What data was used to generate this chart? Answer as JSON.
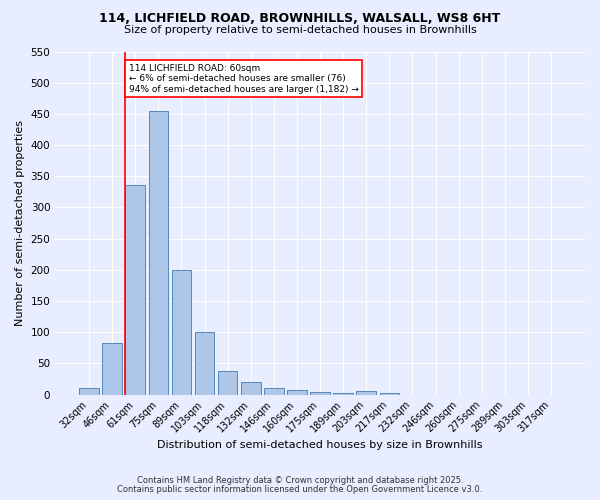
{
  "title1": "114, LICHFIELD ROAD, BROWNHILLS, WALSALL, WS8 6HT",
  "title2": "Size of property relative to semi-detached houses in Brownhills",
  "xlabel": "Distribution of semi-detached houses by size in Brownhills",
  "ylabel": "Number of semi-detached properties",
  "categories": [
    "32sqm",
    "46sqm",
    "61sqm",
    "75sqm",
    "89sqm",
    "103sqm",
    "118sqm",
    "132sqm",
    "146sqm",
    "160sqm",
    "175sqm",
    "189sqm",
    "203sqm",
    "217sqm",
    "232sqm",
    "246sqm",
    "260sqm",
    "275sqm",
    "289sqm",
    "303sqm",
    "317sqm"
  ],
  "values": [
    10,
    83,
    336,
    455,
    200,
    101,
    38,
    20,
    10,
    8,
    4,
    2,
    5,
    2,
    0,
    0,
    0,
    0,
    0,
    0,
    0
  ],
  "bar_color": "#aec6e8",
  "bar_edge_color": "#5588bb",
  "redline_index": 2,
  "annotation_title": "114 LICHFIELD ROAD: 60sqm",
  "annotation_line1": "← 6% of semi-detached houses are smaller (76)",
  "annotation_line2": "94% of semi-detached houses are larger (1,182) →",
  "ylim": [
    0,
    550
  ],
  "yticks": [
    0,
    50,
    100,
    150,
    200,
    250,
    300,
    350,
    400,
    450,
    500,
    550
  ],
  "footnote1": "Contains HM Land Registry data © Crown copyright and database right 2025.",
  "footnote2": "Contains public sector information licensed under the Open Government Licence v3.0.",
  "bg_color": "#e8eeff",
  "grid_color": "#ffffff"
}
